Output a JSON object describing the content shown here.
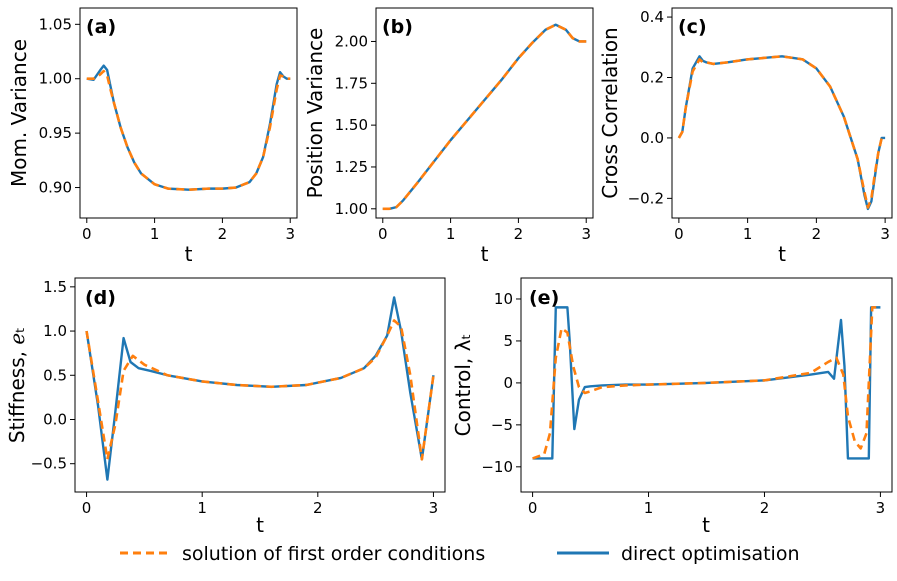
{
  "legend": {
    "placement": "bottom-center",
    "items": [
      {
        "label": "solution of first order conditions",
        "color": "#ff7f0e",
        "style": "dashed"
      },
      {
        "label": "direct optimisation",
        "color": "#1f77b4",
        "style": "solid"
      }
    ]
  },
  "chart_data": [
    {
      "type": "line",
      "panel": "(a)",
      "xlabel": "t",
      "ylabel": "Mom. Variance",
      "xlim": [
        -0.1,
        3.1
      ],
      "ylim": [
        0.872,
        1.065
      ],
      "xticks": [
        0,
        1,
        2,
        3
      ],
      "yticks": [
        0.9,
        0.95,
        1.0,
        1.05
      ],
      "ytick_labels": [
        "0.90",
        "0.95",
        "1.00",
        "1.05"
      ],
      "series": [
        {
          "name": "solution of first order conditions",
          "x": [
            0,
            0.1,
            0.2,
            0.25,
            0.3,
            0.35,
            0.4,
            0.5,
            0.6,
            0.7,
            0.8,
            1.0,
            1.2,
            1.5,
            1.8,
            2.0,
            2.2,
            2.4,
            2.5,
            2.6,
            2.7,
            2.8,
            2.85,
            2.9,
            2.95,
            3.0
          ],
          "y": [
            1.0,
            1.0,
            1.004,
            1.007,
            1.003,
            0.99,
            0.978,
            0.955,
            0.937,
            0.923,
            0.913,
            0.903,
            0.899,
            0.898,
            0.899,
            0.899,
            0.9,
            0.905,
            0.913,
            0.928,
            0.955,
            0.99,
            1.003,
            1.002,
            1.0,
            1.0
          ]
        },
        {
          "name": "direct optimisation",
          "x": [
            0,
            0.1,
            0.2,
            0.25,
            0.3,
            0.35,
            0.4,
            0.5,
            0.6,
            0.7,
            0.8,
            1.0,
            1.2,
            1.5,
            1.8,
            2.0,
            2.2,
            2.4,
            2.5,
            2.6,
            2.7,
            2.8,
            2.85,
            2.9,
            2.95,
            3.0
          ],
          "y": [
            1.0,
            0.999,
            1.008,
            1.012,
            1.008,
            0.993,
            0.978,
            0.955,
            0.937,
            0.923,
            0.913,
            0.903,
            0.899,
            0.898,
            0.899,
            0.899,
            0.9,
            0.905,
            0.913,
            0.928,
            0.958,
            0.995,
            1.006,
            1.002,
            1.0,
            1.0
          ]
        }
      ]
    },
    {
      "type": "line",
      "panel": "(b)",
      "xlabel": "t",
      "ylabel": "Position Variance",
      "xlim": [
        -0.1,
        3.1
      ],
      "ylim": [
        0.945,
        2.2
      ],
      "xticks": [
        0,
        1,
        2,
        3
      ],
      "yticks": [
        1.0,
        1.25,
        1.5,
        1.75,
        2.0
      ],
      "ytick_labels": [
        "1.00",
        "1.25",
        "1.50",
        "1.75",
        "2.00"
      ],
      "series": [
        {
          "name": "solution of first order conditions",
          "x": [
            0,
            0.1,
            0.2,
            0.3,
            0.5,
            0.75,
            1.0,
            1.25,
            1.5,
            1.75,
            2.0,
            2.2,
            2.4,
            2.55,
            2.7,
            2.8,
            2.9,
            3.0
          ],
          "y": [
            1.0,
            1.0,
            1.01,
            1.05,
            1.15,
            1.28,
            1.41,
            1.53,
            1.65,
            1.77,
            1.9,
            1.99,
            2.07,
            2.1,
            2.07,
            2.02,
            2.0,
            2.0
          ]
        },
        {
          "name": "direct optimisation",
          "x": [
            0,
            0.1,
            0.2,
            0.3,
            0.5,
            0.75,
            1.0,
            1.25,
            1.5,
            1.75,
            2.0,
            2.2,
            2.4,
            2.55,
            2.7,
            2.8,
            2.9,
            3.0
          ],
          "y": [
            1.0,
            1.0,
            1.01,
            1.05,
            1.15,
            1.28,
            1.41,
            1.53,
            1.65,
            1.77,
            1.9,
            1.99,
            2.07,
            2.1,
            2.07,
            2.02,
            2.0,
            2.0
          ]
        }
      ]
    },
    {
      "type": "line",
      "panel": "(c)",
      "xlabel": "t",
      "ylabel": "Cross Correlation",
      "xlim": [
        -0.1,
        3.1
      ],
      "ylim": [
        -0.265,
        0.43
      ],
      "xticks": [
        0,
        1,
        2,
        3
      ],
      "yticks": [
        -0.2,
        0.0,
        0.2,
        0.4
      ],
      "ytick_labels": [
        "−0.2",
        "0.0",
        "0.2",
        "0.4"
      ],
      "series": [
        {
          "name": "solution of first order conditions",
          "x": [
            0,
            0.05,
            0.1,
            0.2,
            0.3,
            0.35,
            0.4,
            0.5,
            0.7,
            1.0,
            1.5,
            1.8,
            2.0,
            2.2,
            2.4,
            2.5,
            2.6,
            2.7,
            2.75,
            2.8,
            2.85,
            2.9,
            2.95,
            3.0
          ],
          "y": [
            0.0,
            0.02,
            0.1,
            0.22,
            0.26,
            0.25,
            0.25,
            0.245,
            0.25,
            0.26,
            0.27,
            0.26,
            0.23,
            0.17,
            0.07,
            0.0,
            -0.07,
            -0.18,
            -0.23,
            -0.2,
            -0.12,
            -0.05,
            0.0,
            0.0
          ]
        },
        {
          "name": "direct optimisation",
          "x": [
            0,
            0.05,
            0.1,
            0.2,
            0.3,
            0.35,
            0.4,
            0.5,
            0.7,
            1.0,
            1.5,
            1.8,
            2.0,
            2.2,
            2.4,
            2.5,
            2.6,
            2.7,
            2.75,
            2.8,
            2.85,
            2.9,
            2.95,
            3.0
          ],
          "y": [
            0.0,
            0.02,
            0.1,
            0.23,
            0.27,
            0.255,
            0.25,
            0.245,
            0.25,
            0.26,
            0.27,
            0.26,
            0.23,
            0.17,
            0.07,
            0.0,
            -0.07,
            -0.19,
            -0.235,
            -0.21,
            -0.13,
            -0.05,
            0.0,
            0.0
          ]
        }
      ]
    },
    {
      "type": "line",
      "panel": "(d)",
      "xlabel": "t",
      "ylabel": "Stiffness, ℯₜ",
      "xlim": [
        -0.1,
        3.1
      ],
      "ylim": [
        -0.82,
        1.6
      ],
      "xticks": [
        0,
        1,
        2,
        3
      ],
      "yticks": [
        -0.5,
        0.0,
        0.5,
        1.0,
        1.5
      ],
      "ytick_labels": [
        "−0.5",
        "0.0",
        "0.5",
        "1.0",
        "1.5"
      ],
      "series": [
        {
          "name": "solution of first order conditions",
          "x": [
            0,
            0.1,
            0.18,
            0.25,
            0.32,
            0.4,
            0.5,
            0.7,
            1.0,
            1.3,
            1.6,
            1.9,
            2.2,
            2.4,
            2.5,
            2.6,
            2.66,
            2.72,
            2.8,
            2.9,
            3.0
          ],
          "y": [
            1.0,
            0.2,
            -0.45,
            -0.05,
            0.55,
            0.72,
            0.62,
            0.5,
            0.43,
            0.39,
            0.37,
            0.39,
            0.47,
            0.58,
            0.7,
            0.95,
            1.12,
            1.05,
            0.5,
            -0.45,
            0.5
          ]
        },
        {
          "name": "direct optimisation",
          "x": [
            0,
            0.1,
            0.18,
            0.25,
            0.32,
            0.38,
            0.45,
            0.55,
            0.7,
            1.0,
            1.3,
            1.6,
            1.9,
            2.2,
            2.4,
            2.5,
            2.6,
            2.66,
            2.72,
            2.8,
            2.9,
            3.0
          ],
          "y": [
            1.0,
            0.15,
            -0.68,
            0.1,
            0.92,
            0.65,
            0.58,
            0.55,
            0.5,
            0.43,
            0.39,
            0.37,
            0.39,
            0.47,
            0.58,
            0.72,
            0.95,
            1.38,
            1.0,
            0.3,
            -0.45,
            0.5
          ]
        }
      ]
    },
    {
      "type": "line",
      "panel": "(e)",
      "xlabel": "t",
      "ylabel": "Control, λₜ",
      "xlim": [
        -0.1,
        3.1
      ],
      "ylim": [
        -13,
        12.5
      ],
      "xticks": [
        0,
        1,
        2,
        3
      ],
      "yticks": [
        -10,
        -5,
        0,
        5,
        10
      ],
      "ytick_labels": [
        "−10",
        "−5",
        "0",
        "5",
        "10"
      ],
      "series": [
        {
          "name": "solution of first order conditions",
          "x": [
            0,
            0.1,
            0.15,
            0.2,
            0.25,
            0.3,
            0.35,
            0.4,
            0.45,
            0.5,
            0.6,
            0.8,
            1.0,
            1.5,
            2.0,
            2.4,
            2.55,
            2.62,
            2.68,
            2.72,
            2.78,
            2.83,
            2.88,
            2.93,
            3.0
          ],
          "y": [
            -9.0,
            -8.5,
            -6.0,
            3.0,
            6.5,
            6.0,
            2.0,
            -0.5,
            -1.2,
            -1.0,
            -0.5,
            -0.3,
            -0.2,
            0.0,
            0.3,
            1.2,
            2.5,
            3.0,
            1.0,
            -4.0,
            -7.0,
            -7.8,
            -6.0,
            9.0,
            9.0
          ]
        },
        {
          "name": "direct optimisation",
          "x": [
            0,
            0.15,
            0.17,
            0.2,
            0.3,
            0.32,
            0.36,
            0.4,
            0.45,
            0.5,
            0.6,
            0.8,
            1.0,
            1.5,
            2.0,
            2.4,
            2.55,
            2.6,
            2.66,
            2.69,
            2.72,
            2.74,
            2.9,
            2.92,
            3.0
          ],
          "y": [
            -9.0,
            -9.0,
            -9.0,
            9.0,
            9.0,
            5.0,
            -5.5,
            -2.0,
            -0.5,
            -0.4,
            -0.3,
            -0.2,
            -0.2,
            0.0,
            0.3,
            1.0,
            1.3,
            0.5,
            7.5,
            2.0,
            -9.0,
            -9.0,
            -9.0,
            9.0,
            9.0
          ]
        }
      ]
    }
  ]
}
